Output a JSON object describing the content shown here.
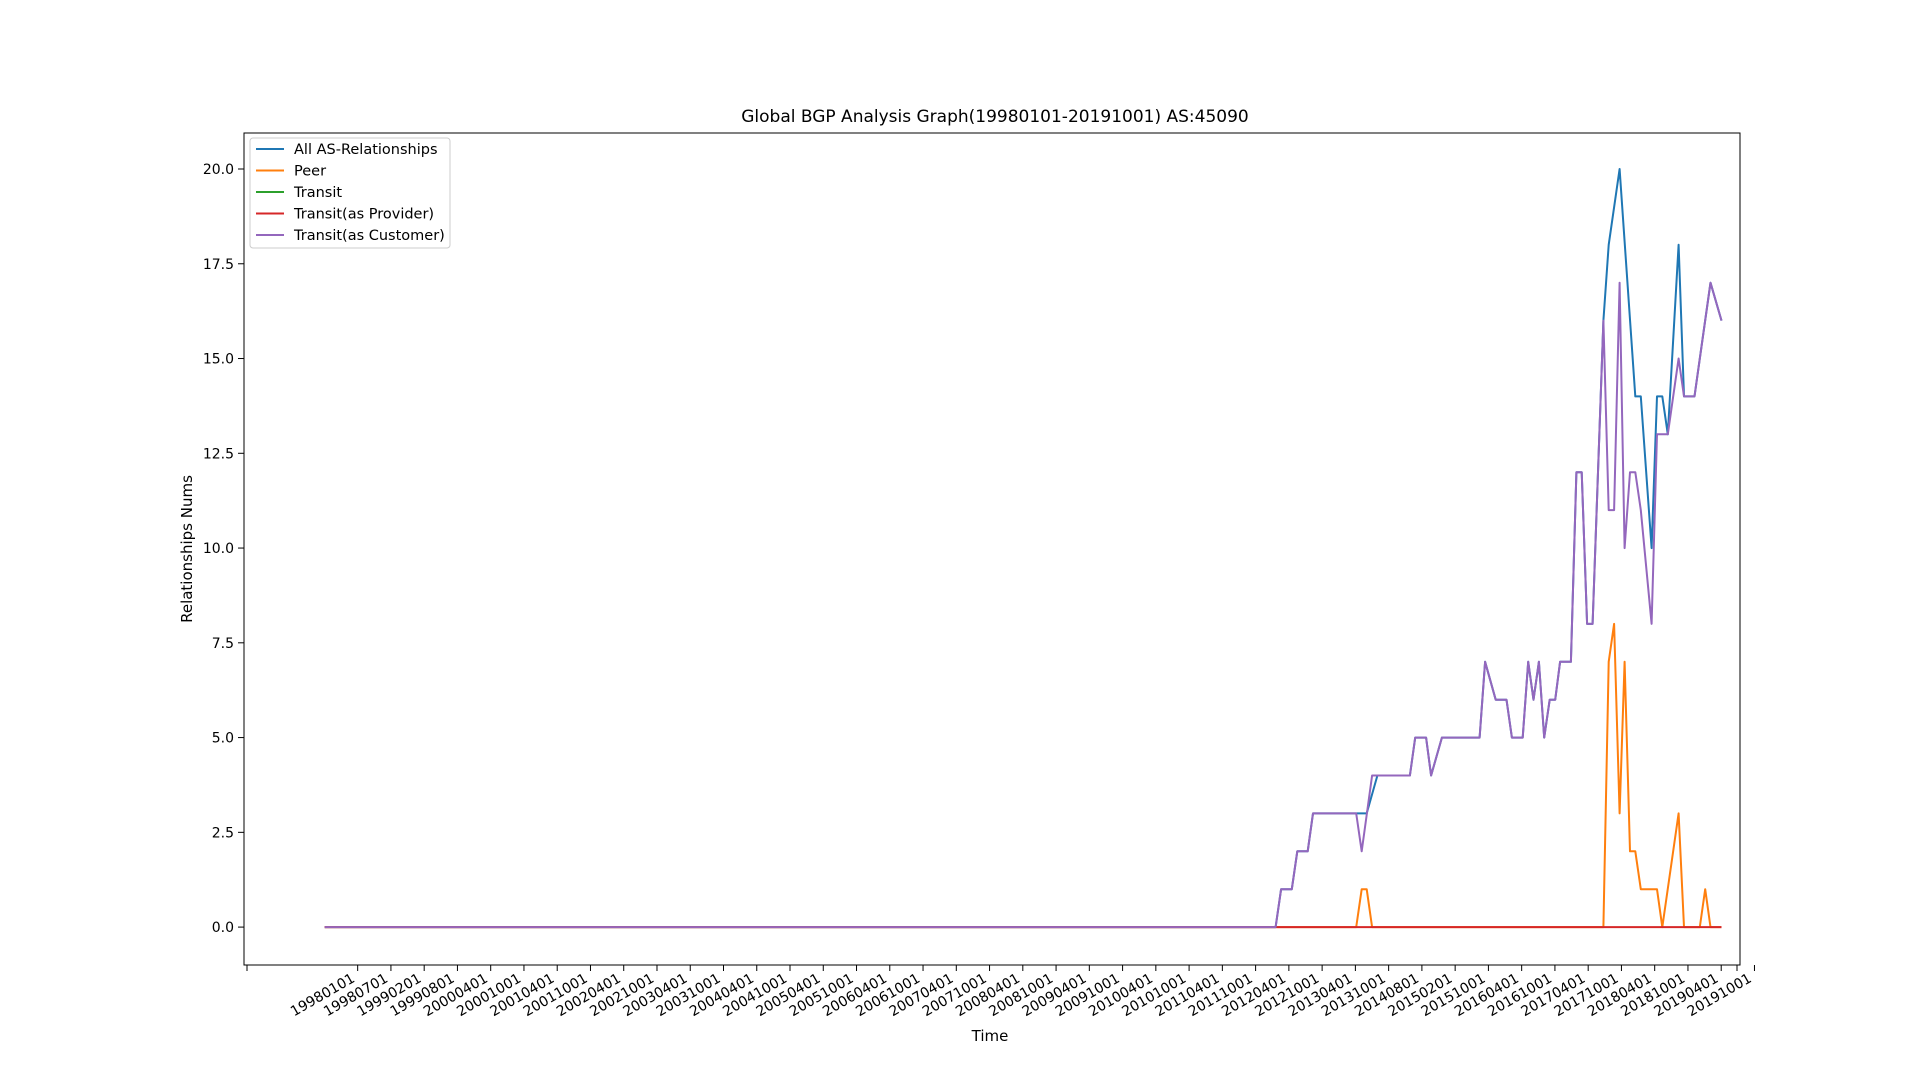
{
  "chart_data": {
    "type": "line",
    "title": "Global BGP Analysis Graph(19980101-20191001) AS:45090",
    "xlabel": "Time",
    "ylabel": "Relationships Nums",
    "ylim": [
      -1.0,
      20.95
    ],
    "yticks": [
      "0.0",
      "2.5",
      "5.0",
      "7.5",
      "10.0",
      "12.5",
      "15.0",
      "17.5",
      "20.0"
    ],
    "xlim": [
      "1996-10-01",
      "2019-12-15"
    ],
    "xtick_labels": [
      "19980101",
      "19980701",
      "19990201",
      "19990801",
      "20000401",
      "20001001",
      "20010401",
      "20011001",
      "20020401",
      "20021001",
      "20030401",
      "20031001",
      "20040401",
      "20041001",
      "20050401",
      "20051001",
      "20060401",
      "20061001",
      "20070401",
      "20071001",
      "20080401",
      "20081001",
      "20090401",
      "20091001",
      "20100401",
      "20101001",
      "20110401",
      "20111001",
      "20120401",
      "20121001",
      "20130401",
      "20131001",
      "20140801",
      "20150201",
      "20151001",
      "20160401",
      "20161001",
      "20170401",
      "20171001",
      "20180401",
      "20181001",
      "20190401",
      "20191001"
    ],
    "legend_position": "top-left",
    "grid": false,
    "colors": {
      "all": "#1f77b4",
      "peer": "#ff7f0e",
      "transit": "#2ca02c",
      "provider": "#d62728",
      "customer": "#9467bd"
    },
    "series": [
      {
        "name": "All AS-Relationships",
        "color": "#1f77b4",
        "points": [
          [
            "1998-01-01",
            0
          ],
          [
            "2012-10-01",
            0
          ],
          [
            "2012-11-01",
            1
          ],
          [
            "2013-01-01",
            1
          ],
          [
            "2013-02-01",
            2
          ],
          [
            "2013-04-01",
            2
          ],
          [
            "2013-05-01",
            3
          ],
          [
            "2014-03-01",
            3
          ],
          [
            "2014-05-01",
            4
          ],
          [
            "2014-11-01",
            4
          ],
          [
            "2014-12-01",
            5
          ],
          [
            "2015-02-01",
            5
          ],
          [
            "2015-03-01",
            4
          ],
          [
            "2015-05-01",
            5
          ],
          [
            "2015-12-01",
            5
          ],
          [
            "2016-01-01",
            7
          ],
          [
            "2016-03-01",
            6
          ],
          [
            "2016-05-01",
            6
          ],
          [
            "2016-06-01",
            5
          ],
          [
            "2016-08-01",
            5
          ],
          [
            "2016-09-01",
            7
          ],
          [
            "2016-10-01",
            6
          ],
          [
            "2016-11-01",
            7
          ],
          [
            "2016-12-01",
            5
          ],
          [
            "2017-01-01",
            6
          ],
          [
            "2017-02-01",
            6
          ],
          [
            "2017-03-01",
            7
          ],
          [
            "2017-05-01",
            7
          ],
          [
            "2017-06-01",
            12
          ],
          [
            "2017-07-01",
            12
          ],
          [
            "2017-08-01",
            8
          ],
          [
            "2017-09-01",
            8
          ],
          [
            "2017-11-01",
            16
          ],
          [
            "2017-12-01",
            18
          ],
          [
            "2018-02-01",
            20
          ],
          [
            "2018-05-01",
            14
          ],
          [
            "2018-06-01",
            14
          ],
          [
            "2018-08-01",
            10
          ],
          [
            "2018-09-01",
            14
          ],
          [
            "2018-10-01",
            14
          ],
          [
            "2018-11-01",
            13
          ],
          [
            "2019-01-01",
            18
          ],
          [
            "2019-02-01",
            14
          ],
          [
            "2019-04-01",
            14
          ],
          [
            "2019-05-01",
            15
          ],
          [
            "2019-07-01",
            17
          ],
          [
            "2019-09-01",
            16
          ]
        ]
      },
      {
        "name": "Peer",
        "color": "#ff7f0e",
        "points": [
          [
            "1998-01-01",
            0
          ],
          [
            "2014-01-01",
            0
          ],
          [
            "2014-02-01",
            1
          ],
          [
            "2014-03-01",
            1
          ],
          [
            "2014-04-01",
            0
          ],
          [
            "2017-11-01",
            0
          ],
          [
            "2017-12-01",
            7
          ],
          [
            "2018-01-01",
            8
          ],
          [
            "2018-02-01",
            3
          ],
          [
            "2018-03-01",
            7
          ],
          [
            "2018-04-01",
            2
          ],
          [
            "2018-05-01",
            2
          ],
          [
            "2018-06-01",
            1
          ],
          [
            "2018-09-01",
            1
          ],
          [
            "2018-10-01",
            0
          ],
          [
            "2019-01-01",
            3
          ],
          [
            "2019-02-01",
            0
          ],
          [
            "2019-05-01",
            0
          ],
          [
            "2019-06-01",
            1
          ],
          [
            "2019-07-01",
            0
          ],
          [
            "2019-09-01",
            0
          ]
        ]
      },
      {
        "name": "Transit",
        "color": "#2ca02c",
        "points": []
      },
      {
        "name": "Transit(as Provider)",
        "color": "#d62728",
        "points": [
          [
            "1998-01-01",
            0
          ],
          [
            "2019-09-01",
            0
          ]
        ]
      },
      {
        "name": "Transit(as Customer)",
        "color": "#9467bd",
        "points": [
          [
            "1998-01-01",
            0
          ],
          [
            "2012-10-01",
            0
          ],
          [
            "2012-11-01",
            1
          ],
          [
            "2013-01-01",
            1
          ],
          [
            "2013-02-01",
            2
          ],
          [
            "2013-04-01",
            2
          ],
          [
            "2013-05-01",
            3
          ],
          [
            "2014-01-01",
            3
          ],
          [
            "2014-02-01",
            2
          ],
          [
            "2014-04-01",
            4
          ],
          [
            "2014-11-01",
            4
          ],
          [
            "2014-12-01",
            5
          ],
          [
            "2015-02-01",
            5
          ],
          [
            "2015-03-01",
            4
          ],
          [
            "2015-05-01",
            5
          ],
          [
            "2015-12-01",
            5
          ],
          [
            "2016-01-01",
            7
          ],
          [
            "2016-03-01",
            6
          ],
          [
            "2016-05-01",
            6
          ],
          [
            "2016-06-01",
            5
          ],
          [
            "2016-08-01",
            5
          ],
          [
            "2016-09-01",
            7
          ],
          [
            "2016-10-01",
            6
          ],
          [
            "2016-11-01",
            7
          ],
          [
            "2016-12-01",
            5
          ],
          [
            "2017-01-01",
            6
          ],
          [
            "2017-02-01",
            6
          ],
          [
            "2017-03-01",
            7
          ],
          [
            "2017-05-01",
            7
          ],
          [
            "2017-06-01",
            12
          ],
          [
            "2017-07-01",
            12
          ],
          [
            "2017-08-01",
            8
          ],
          [
            "2017-09-01",
            8
          ],
          [
            "2017-11-01",
            16
          ],
          [
            "2017-12-01",
            11
          ],
          [
            "2018-01-01",
            11
          ],
          [
            "2018-02-01",
            17
          ],
          [
            "2018-03-01",
            10
          ],
          [
            "2018-04-01",
            12
          ],
          [
            "2018-05-01",
            12
          ],
          [
            "2018-06-01",
            11
          ],
          [
            "2018-08-01",
            8
          ],
          [
            "2018-09-01",
            13
          ],
          [
            "2018-11-01",
            13
          ],
          [
            "2019-01-01",
            15
          ],
          [
            "2019-02-01",
            14
          ],
          [
            "2019-04-01",
            14
          ],
          [
            "2019-07-01",
            17
          ],
          [
            "2019-09-01",
            16
          ]
        ]
      }
    ]
  }
}
